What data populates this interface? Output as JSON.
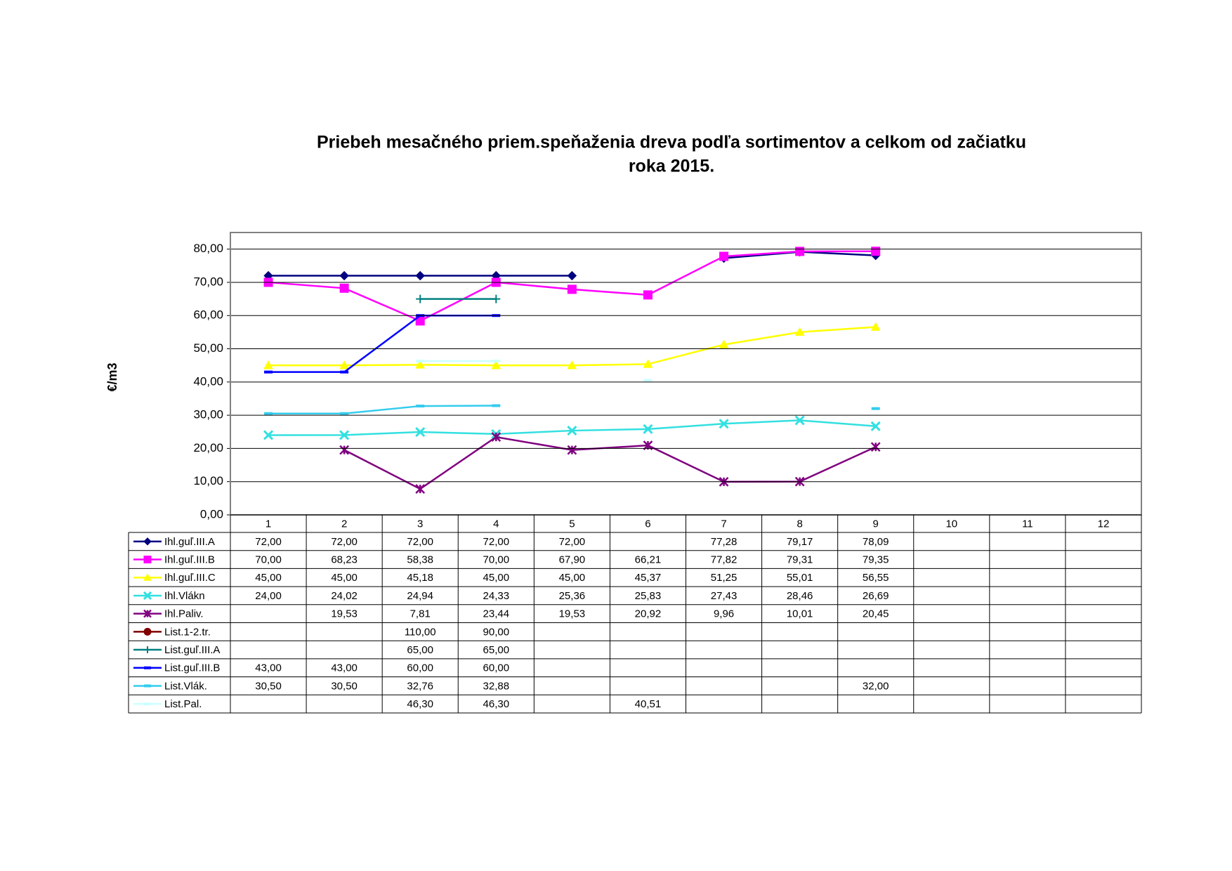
{
  "chart_data": {
    "type": "line",
    "title": [
      "Priebeh mesačného priem.speňaženia dreva  podľa sortimentov a celkom od začiatku",
      "roka 2015."
    ],
    "y_label": "€/m3",
    "categories": [
      "1",
      "2",
      "3",
      "4",
      "5",
      "6",
      "7",
      "8",
      "9",
      "10",
      "11",
      "12"
    ],
    "ylim": [
      0,
      85
    ],
    "yticks": [
      {
        "value": 0,
        "label": "0,00"
      },
      {
        "value": 10,
        "label": "10,00"
      },
      {
        "value": 20,
        "label": "20,00"
      },
      {
        "value": 30,
        "label": "30,00"
      },
      {
        "value": 40,
        "label": "40,00"
      },
      {
        "value": 50,
        "label": "50,00"
      },
      {
        "value": 60,
        "label": "60,00"
      },
      {
        "value": 70,
        "label": "70,00"
      },
      {
        "value": 80,
        "label": "80,00"
      }
    ],
    "grid": true,
    "series": [
      {
        "name": "Ihl.guľ.III.A",
        "color": "#000080",
        "marker": "diamond",
        "values": [
          72,
          72,
          72,
          72,
          72,
          null,
          77.28,
          79.17,
          78.09,
          null,
          null,
          null
        ],
        "value_labels": [
          "72,00",
          "72,00",
          "72,00",
          "72,00",
          "72,00",
          null,
          "77,28",
          "79,17",
          "78,09",
          null,
          null,
          null
        ]
      },
      {
        "name": "Ihl.guľ.III.B",
        "color": "#FF00FF",
        "marker": "square",
        "values": [
          70,
          68.23,
          58.38,
          70,
          67.9,
          66.21,
          77.82,
          79.31,
          79.35,
          null,
          null,
          null
        ],
        "value_labels": [
          "70,00",
          "68,23",
          "58,38",
          "70,00",
          "67,90",
          "66,21",
          "77,82",
          "79,31",
          "79,35",
          null,
          null,
          null
        ]
      },
      {
        "name": "Ihl.guľ.III.C",
        "color": "#FFFF00",
        "marker": "triangle",
        "values": [
          45,
          45,
          45.18,
          45,
          45,
          45.37,
          51.25,
          55.01,
          56.55,
          null,
          null,
          null
        ],
        "value_labels": [
          "45,00",
          "45,00",
          "45,18",
          "45,00",
          "45,00",
          "45,37",
          "51,25",
          "55,01",
          "56,55",
          null,
          null,
          null
        ]
      },
      {
        "name": "Ihl.Vlákn",
        "color": "#33E0E0",
        "marker": "x",
        "values": [
          24,
          24.02,
          24.94,
          24.33,
          25.36,
          25.83,
          27.43,
          28.46,
          26.69,
          null,
          null,
          null
        ],
        "value_labels": [
          "24,00",
          "24,02",
          "24,94",
          "24,33",
          "25,36",
          "25,83",
          "27,43",
          "28,46",
          "26,69",
          null,
          null,
          null
        ]
      },
      {
        "name": "Ihl.Paliv.",
        "color": "#800080",
        "marker": "star",
        "values": [
          null,
          19.53,
          7.81,
          23.44,
          19.53,
          20.92,
          9.96,
          10.01,
          20.45,
          null,
          null,
          null
        ],
        "value_labels": [
          null,
          "19,53",
          "7,81",
          "23,44",
          "19,53",
          "20,92",
          "9,96",
          "10,01",
          "20,45",
          null,
          null,
          null
        ]
      },
      {
        "name": "List.1-2.tr.",
        "color": "#800000",
        "marker": "circle",
        "values": [
          null,
          null,
          110,
          90,
          null,
          null,
          null,
          null,
          null,
          null,
          null,
          null
        ],
        "value_labels": [
          null,
          null,
          "110,00",
          "90,00",
          null,
          null,
          null,
          null,
          null,
          null,
          null,
          null
        ]
      },
      {
        "name": "List.guľ.III.A",
        "color": "#008080",
        "marker": "plus",
        "values": [
          null,
          null,
          65,
          65,
          null,
          null,
          null,
          null,
          null,
          null,
          null,
          null
        ],
        "value_labels": [
          null,
          null,
          "65,00",
          "65,00",
          null,
          null,
          null,
          null,
          null,
          null,
          null,
          null
        ]
      },
      {
        "name": "List.guľ.III.B",
        "color": "#0000FF",
        "marker": "dash",
        "values": [
          43,
          43,
          60,
          60,
          null,
          null,
          null,
          null,
          null,
          null,
          null,
          null
        ],
        "value_labels": [
          "43,00",
          "43,00",
          "60,00",
          "60,00",
          null,
          null,
          null,
          null,
          null,
          null,
          null,
          null
        ]
      },
      {
        "name": "List.Vlák.",
        "color": "#33CCEE",
        "marker": "dash",
        "values": [
          30.5,
          30.5,
          32.76,
          32.88,
          null,
          null,
          null,
          null,
          32,
          null,
          null,
          null
        ],
        "value_labels": [
          "30,50",
          "30,50",
          "32,76",
          "32,88",
          null,
          null,
          null,
          null,
          "32,00",
          null,
          null,
          null
        ]
      },
      {
        "name": "List.Pal.",
        "color": "#CCFFFF",
        "marker": "dash",
        "values": [
          null,
          null,
          46.3,
          46.3,
          null,
          40.51,
          null,
          null,
          null,
          null,
          null,
          null
        ],
        "value_labels": [
          null,
          null,
          "46,30",
          "46,30",
          null,
          "40,51",
          null,
          null,
          null,
          null,
          null,
          null
        ]
      }
    ]
  }
}
